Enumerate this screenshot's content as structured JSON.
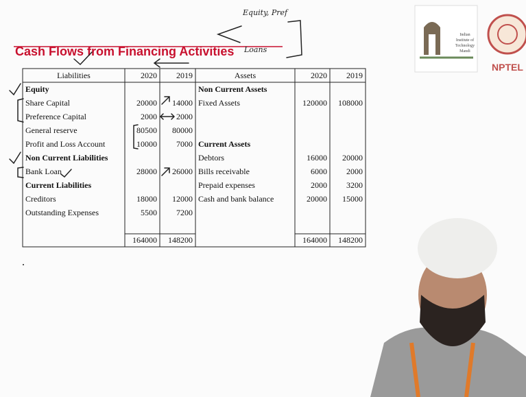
{
  "header": {
    "title": "Cash Flows from Financing Activities"
  },
  "annotations": {
    "equity_pref": "Equity, Pref",
    "loans": "Loans"
  },
  "logo": {
    "institute": [
      "Indian",
      "Institute of",
      "Technology",
      "Mandi"
    ],
    "nptel": "NPTEL"
  },
  "table": {
    "columns": [
      "Liabilities",
      "2020",
      "2019",
      "Assets",
      "2020",
      "2019"
    ],
    "rows": [
      [
        "Equity",
        null,
        null,
        "Non Current Assets",
        null,
        null
      ],
      [
        "Share Capital",
        20000,
        14000,
        "Fixed Assets",
        120000,
        108000
      ],
      [
        "Preference Capital",
        2000,
        2000,
        null,
        null,
        null
      ],
      [
        "General reserve",
        80500,
        80000,
        null,
        null,
        null
      ],
      [
        "Profit and Loss Account",
        10000,
        7000,
        "Current Assets",
        null,
        null
      ],
      [
        "Non Current Liabilities",
        null,
        null,
        "Debtors",
        16000,
        20000
      ],
      [
        "Bank Loan",
        28000,
        26000,
        "Bills receivable",
        6000,
        2000
      ],
      [
        "Current Liabilities",
        null,
        null,
        "Prepaid expenses",
        2000,
        3200
      ],
      [
        "Creditors",
        18000,
        12000,
        "Cash and bank balance",
        20000,
        15000
      ],
      [
        "Outstanding Expenses",
        5500,
        7200,
        null,
        null,
        null
      ]
    ],
    "totals": [
      null,
      164000,
      148200,
      null,
      164000,
      148200
    ]
  }
}
